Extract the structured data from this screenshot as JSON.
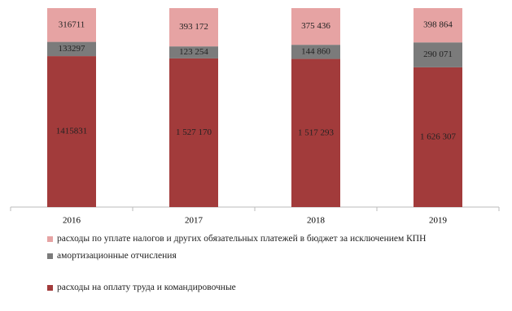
{
  "chart_data": {
    "type": "bar",
    "stacking": "percent",
    "categories": [
      "2016",
      "2017",
      "2018",
      "2019"
    ],
    "series": [
      {
        "name": "расходы на оплату труда и командировочные",
        "color": "#a23b3b",
        "values": [
          1415831,
          1527170,
          1517293,
          1626307
        ],
        "value_labels": [
          "1415831",
          "1 527 170",
          "1 517 293",
          "1 626 307"
        ]
      },
      {
        "name": "амортизационные отчисления",
        "color": "#7b7b7b",
        "values": [
          133297,
          123254,
          144860,
          290071
        ],
        "value_labels": [
          "133297",
          "123 254",
          "144 860",
          "290 071"
        ]
      },
      {
        "name": "расходы по уплате налогов и других обязательных платежей в бюджет за исключением КПН",
        "color": "#e6a3a3",
        "values": [
          316711,
          393172,
          375436,
          398864
        ],
        "value_labels": [
          "316711",
          "393 172",
          "375 436",
          "398 864"
        ]
      }
    ]
  }
}
